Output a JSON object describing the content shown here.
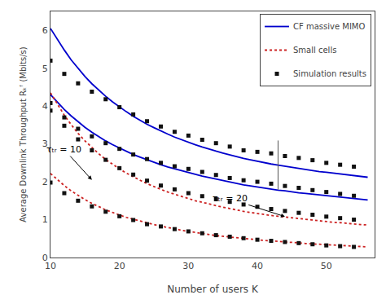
{
  "chart_data": {
    "type": "line",
    "xlabel": "Number of users K",
    "ylabel": "Average Downlink Throughput Rₖᶠ (Mbits/s)",
    "xlim": [
      10,
      57
    ],
    "ylim": [
      0,
      6.5
    ],
    "xticks": [
      10,
      20,
      30,
      40,
      50
    ],
    "yticks": [
      0,
      1,
      2,
      3,
      4,
      5,
      6
    ],
    "grid": false,
    "legend": "upper right",
    "series": [
      {
        "name": "CF massive MIMO",
        "type": "line",
        "color": "#0000cd",
        "line_style": "solid",
        "x": [
          10,
          11,
          12,
          13,
          14,
          15,
          16,
          17,
          18,
          19,
          20,
          21,
          22,
          23,
          24,
          25,
          26,
          27,
          28,
          29,
          30,
          31,
          32,
          33,
          34,
          35,
          36,
          37,
          38,
          39,
          40,
          41,
          42,
          43,
          44,
          45,
          46,
          47,
          48,
          49,
          50,
          51,
          52,
          53,
          54,
          55,
          56
        ],
        "values": [
          6.05,
          5.75,
          5.48,
          5.22,
          4.99,
          4.78,
          4.59,
          4.42,
          4.26,
          4.11,
          3.97,
          3.85,
          3.73,
          3.62,
          3.52,
          3.43,
          3.34,
          3.26,
          3.18,
          3.11,
          3.04,
          2.98,
          2.92,
          2.86,
          2.81,
          2.76,
          2.71,
          2.67,
          2.62,
          2.58,
          2.54,
          2.51,
          2.47,
          2.44,
          2.41,
          2.38,
          2.35,
          2.32,
          2.3,
          2.27,
          2.25,
          2.23,
          2.2,
          2.18,
          2.16,
          2.14,
          2.12
        ]
      },
      {
        "name": "CF massive MIMO",
        "type": "line",
        "color": "#0000cd",
        "line_style": "solid",
        "x": [
          10,
          11,
          12,
          13,
          14,
          15,
          16,
          17,
          18,
          19,
          20,
          21,
          22,
          23,
          24,
          25,
          26,
          27,
          28,
          29,
          30,
          31,
          32,
          33,
          34,
          35,
          36,
          37,
          38,
          39,
          40,
          41,
          42,
          43,
          44,
          45,
          46,
          47,
          48,
          49,
          50,
          51,
          52,
          53,
          54,
          55,
          56
        ],
        "values": [
          4.3,
          4.1,
          3.91,
          3.74,
          3.58,
          3.44,
          3.31,
          3.19,
          3.08,
          2.98,
          2.89,
          2.8,
          2.72,
          2.65,
          2.58,
          2.51,
          2.45,
          2.39,
          2.34,
          2.29,
          2.24,
          2.19,
          2.15,
          2.11,
          2.07,
          2.03,
          1.99,
          1.96,
          1.92,
          1.89,
          1.86,
          1.83,
          1.81,
          1.78,
          1.76,
          1.73,
          1.71,
          1.69,
          1.67,
          1.65,
          1.63,
          1.61,
          1.59,
          1.57,
          1.55,
          1.54,
          1.52
        ]
      },
      {
        "name": "Small cells",
        "type": "line",
        "color": "#cc2222",
        "line_style": "dotted",
        "x": [
          10,
          11,
          12,
          13,
          14,
          15,
          16,
          17,
          18,
          19,
          20,
          21,
          22,
          23,
          24,
          25,
          26,
          27,
          28,
          29,
          30,
          31,
          32,
          33,
          34,
          35,
          36,
          37,
          38,
          39,
          40,
          41,
          42,
          43,
          44,
          45,
          46,
          47,
          48,
          49,
          50,
          51,
          52,
          53,
          54,
          55,
          56
        ],
        "values": [
          4.35,
          4.04,
          3.76,
          3.51,
          3.28,
          3.08,
          2.9,
          2.74,
          2.59,
          2.46,
          2.34,
          2.23,
          2.13,
          2.04,
          1.95,
          1.87,
          1.8,
          1.73,
          1.67,
          1.61,
          1.55,
          1.5,
          1.46,
          1.41,
          1.37,
          1.33,
          1.29,
          1.26,
          1.22,
          1.19,
          1.16,
          1.14,
          1.11,
          1.09,
          1.07,
          1.04,
          1.02,
          1.0,
          0.98,
          0.97,
          0.95,
          0.93,
          0.92,
          0.9,
          0.89,
          0.87,
          0.86
        ]
      },
      {
        "name": "Small cells",
        "type": "line",
        "color": "#cc2222",
        "line_style": "dotted",
        "x": [
          10,
          11,
          12,
          13,
          14,
          15,
          16,
          17,
          18,
          19,
          20,
          21,
          22,
          23,
          24,
          25,
          26,
          27,
          28,
          29,
          30,
          31,
          32,
          33,
          34,
          35,
          36,
          37,
          38,
          39,
          40,
          41,
          42,
          43,
          44,
          45,
          46,
          47,
          48,
          49,
          50,
          51,
          52,
          53,
          54,
          55,
          56
        ],
        "values": [
          2.22,
          2.05,
          1.9,
          1.76,
          1.64,
          1.53,
          1.43,
          1.34,
          1.26,
          1.19,
          1.12,
          1.06,
          1.01,
          0.96,
          0.91,
          0.87,
          0.83,
          0.79,
          0.75,
          0.72,
          0.69,
          0.66,
          0.63,
          0.61,
          0.58,
          0.56,
          0.54,
          0.52,
          0.5,
          0.48,
          0.47,
          0.45,
          0.44,
          0.42,
          0.41,
          0.4,
          0.38,
          0.37,
          0.36,
          0.35,
          0.34,
          0.33,
          0.32,
          0.31,
          0.3,
          0.29,
          0.28
        ]
      },
      {
        "name": "Simulation results",
        "type": "scatter",
        "color": "#111111",
        "marker": "square",
        "x": [
          10,
          12,
          14,
          16,
          18,
          20,
          22,
          24,
          26,
          28,
          30,
          32,
          34,
          36,
          38,
          40,
          42,
          44,
          46,
          48,
          50,
          52,
          54
        ],
        "values": [
          5.2,
          4.85,
          4.6,
          4.38,
          4.18,
          3.97,
          3.78,
          3.6,
          3.46,
          3.32,
          3.22,
          3.11,
          3.02,
          2.93,
          2.83,
          2.79,
          2.75,
          2.68,
          2.63,
          2.57,
          2.5,
          2.45,
          2.4
        ]
      },
      {
        "name": "Simulation results",
        "type": "scatter",
        "color": "#111111",
        "marker": "square",
        "x": [
          10,
          12,
          14,
          16,
          18,
          20,
          22,
          24,
          26,
          28,
          30,
          32,
          34,
          36,
          38,
          40,
          42,
          44,
          46,
          48,
          50,
          52,
          54
        ],
        "values": [
          4.08,
          3.7,
          3.4,
          3.2,
          3.02,
          2.87,
          2.72,
          2.6,
          2.5,
          2.41,
          2.34,
          2.26,
          2.18,
          2.1,
          2.04,
          2.0,
          1.95,
          1.89,
          1.84,
          1.78,
          1.73,
          1.68,
          1.63
        ]
      },
      {
        "name": "Simulation results",
        "type": "scatter",
        "color": "#111111",
        "marker": "square",
        "x": [
          10,
          12,
          14,
          16,
          18,
          20,
          22,
          24,
          26,
          28,
          30,
          32,
          34,
          36,
          38,
          40,
          42,
          44,
          46,
          48,
          50,
          52,
          54
        ],
        "values": [
          3.88,
          3.48,
          3.12,
          2.83,
          2.58,
          2.36,
          2.19,
          2.03,
          1.9,
          1.8,
          1.7,
          1.62,
          1.54,
          1.47,
          1.4,
          1.34,
          1.28,
          1.23,
          1.18,
          1.13,
          1.08,
          1.04,
          1.0
        ]
      },
      {
        "name": "Simulation results",
        "type": "scatter",
        "color": "#111111",
        "marker": "square",
        "x": [
          10,
          12,
          14,
          16,
          18,
          20,
          22,
          24,
          26,
          28,
          30,
          32,
          34,
          36,
          38,
          40,
          42,
          44,
          46,
          48,
          50,
          52,
          54
        ],
        "values": [
          1.98,
          1.7,
          1.5,
          1.35,
          1.21,
          1.09,
          0.99,
          0.88,
          0.82,
          0.75,
          0.69,
          0.64,
          0.59,
          0.55,
          0.51,
          0.47,
          0.44,
          0.41,
          0.38,
          0.35,
          0.32,
          0.3,
          0.28
        ]
      }
    ],
    "annotations": [
      {
        "text": "τₜᵣ = 10",
        "x": 16,
        "y": 2.05,
        "text_x": 12,
        "text_y": 2.85
      },
      {
        "text": "τₜᵣ = 20",
        "x": 44,
        "y": 1.08,
        "text_x": 36,
        "text_y": 1.55
      }
    ],
    "segments": [
      {
        "x": [
          43,
          43
        ],
        "y": [
          3.09,
          1.79
        ],
        "color": "#555555"
      }
    ]
  }
}
